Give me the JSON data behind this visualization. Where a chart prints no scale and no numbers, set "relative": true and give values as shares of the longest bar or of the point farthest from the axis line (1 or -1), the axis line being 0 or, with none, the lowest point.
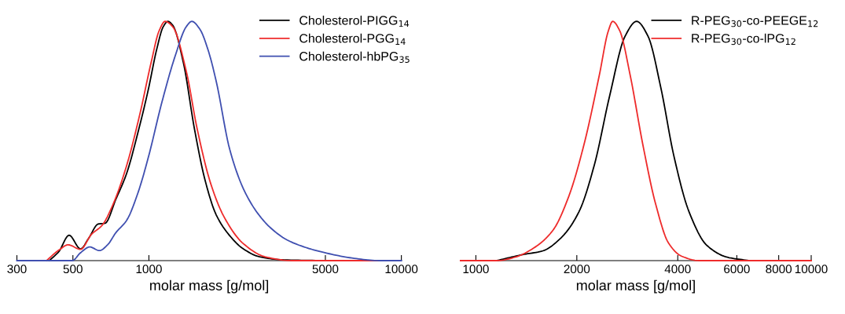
{
  "chart_data": [
    {
      "type": "line",
      "xlabel": "molar mass [g/mol]",
      "log": "x",
      "relative": true,
      "xlim": [
        300,
        10000
      ],
      "xticks": [
        300,
        500,
        1000,
        5000,
        10000
      ],
      "tick_labels": "x",
      "grid": false,
      "legend": "top right",
      "series": [
        {
          "name": "Cholesterol-PIGG$_{14}$",
          "color": "#000000",
          "x": [
            403,
            440,
            483,
            536,
            577,
            630,
            670,
            740,
            817,
            902,
            995,
            1072,
            1140,
            1189,
            1242,
            1371,
            1514,
            1672,
            1848,
            2091,
            2366,
            2746,
            3430,
            5040
          ],
          "values": [
            0,
            0.038,
            0.106,
            0.049,
            0.093,
            0.153,
            0.156,
            0.257,
            0.366,
            0.53,
            0.716,
            0.88,
            0.978,
            1.0,
            0.984,
            0.825,
            0.552,
            0.333,
            0.191,
            0.104,
            0.049,
            0.016,
            0.003,
            0
          ]
        },
        {
          "name": "Cholesterol-PGG$_{14}$",
          "color": "#ee2b2b",
          "x": [
            393,
            440,
            479,
            536,
            591,
            653,
            721,
            817,
            923,
            1019,
            1099,
            1159,
            1242,
            1406,
            1552,
            1757,
            1991,
            2366,
            2884,
            3698,
            8166
          ],
          "values": [
            0,
            0.044,
            0.066,
            0.047,
            0.109,
            0.148,
            0.235,
            0.399,
            0.617,
            0.825,
            0.962,
            1.0,
            0.978,
            0.792,
            0.552,
            0.322,
            0.18,
            0.071,
            0.016,
            0,
            0
          ]
        },
        {
          "name": "Cholesterol-hbPG$_{35}$",
          "color": "#3f4fb0",
          "x": [
            300,
            497,
            536,
            583,
            637,
            686,
            740,
            817,
            902,
            995,
            1125,
            1273,
            1406,
            1479,
            1592,
            1716,
            1848,
            2091,
            2366,
            2679,
            3033,
            3518,
            4180,
            4977,
            6368,
            8166,
            10000
          ],
          "values": [
            0,
            0,
            0.033,
            0.057,
            0.042,
            0.066,
            0.117,
            0.169,
            0.279,
            0.432,
            0.661,
            0.858,
            0.978,
            1.0,
            0.967,
            0.88,
            0.749,
            0.464,
            0.301,
            0.202,
            0.137,
            0.087,
            0.055,
            0.033,
            0.011,
            0,
            0
          ]
        }
      ]
    },
    {
      "type": "line",
      "xlabel": "molar mass [g/mol]",
      "log": "x",
      "relative": true,
      "xlim": [
        900,
        10000
      ],
      "xticks": [
        1000,
        2000,
        4000,
        6000,
        8000,
        10000
      ],
      "tick_labels": "x",
      "grid": false,
      "legend": "top right",
      "series": [
        {
          "name": "R-PEG$_{30}$-co-PEEGE$_{12}$",
          "color": "#000000",
          "x": [
            1155,
            1378,
            1585,
            1794,
            2028,
            2254,
            2507,
            2786,
            3015,
            3261,
            3562,
            3890,
            4325,
            4890,
            5626,
            6531
          ],
          "values": [
            0,
            0.025,
            0.041,
            0.095,
            0.203,
            0.398,
            0.69,
            0.938,
            1.0,
            0.938,
            0.722,
            0.441,
            0.203,
            0.063,
            0.014,
            0
          ]
        },
        {
          "name": "R-PEG$_{30}$-co-lPG$_{12}$",
          "color": "#ee2b2b",
          "x": [
            900,
            1155,
            1306,
            1504,
            1700,
            1892,
            2100,
            2335,
            2483,
            2559,
            2687,
            2884,
            3148,
            3437,
            3753,
            4100,
            4634,
            10000
          ],
          "values": [
            0,
            0,
            0.014,
            0.057,
            0.128,
            0.268,
            0.484,
            0.776,
            0.96,
            1.0,
            0.96,
            0.776,
            0.484,
            0.236,
            0.074,
            0.019,
            0,
            0
          ]
        }
      ]
    }
  ]
}
